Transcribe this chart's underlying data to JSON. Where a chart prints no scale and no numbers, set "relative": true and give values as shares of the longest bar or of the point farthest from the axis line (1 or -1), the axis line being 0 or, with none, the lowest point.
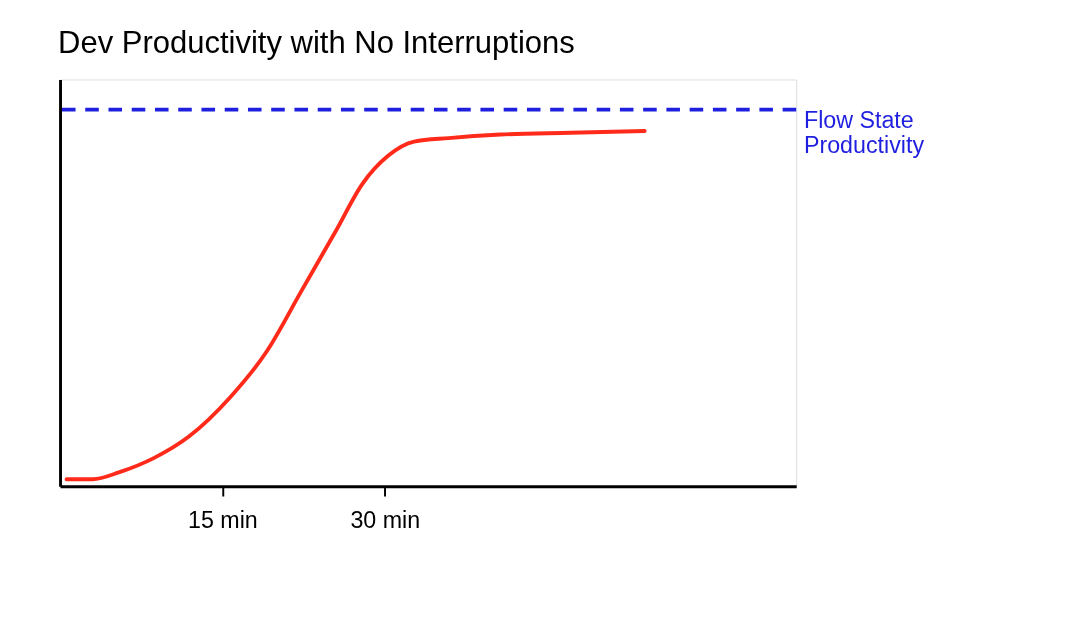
{
  "chart_data": {
    "type": "line",
    "title": "Dev Productivity with No Interruptions",
    "relative": true,
    "x": [
      0.6,
      3,
      5.5,
      8.7,
      11.9,
      15.7,
      19.1,
      22.3,
      25.5,
      27.9,
      30.3,
      32.7,
      35.9,
      40.7,
      47.2,
      54
    ],
    "series": [
      {
        "color": "#ff2a1a",
        "values": [
          0.02,
          0.02,
          0.04,
          0.08,
          0.14,
          0.25,
          0.38,
          0.55,
          0.72,
          0.85,
          0.93,
          0.97,
          0.98,
          0.99,
          0.995,
          1
        ]
      }
    ],
    "xlim": [
      0,
      68
    ],
    "xticks": [
      {
        "value": 15,
        "label": "15 min"
      },
      {
        "value": 30,
        "label": "30 min"
      }
    ],
    "ref_lines": [
      {
        "axis": "y",
        "value": 1.06,
        "label": "Flow State\nProductivity",
        "color": "#1f1fe0",
        "line_style": "dashed"
      }
    ],
    "grid": false,
    "marker": "none",
    "line_style": "solid"
  }
}
